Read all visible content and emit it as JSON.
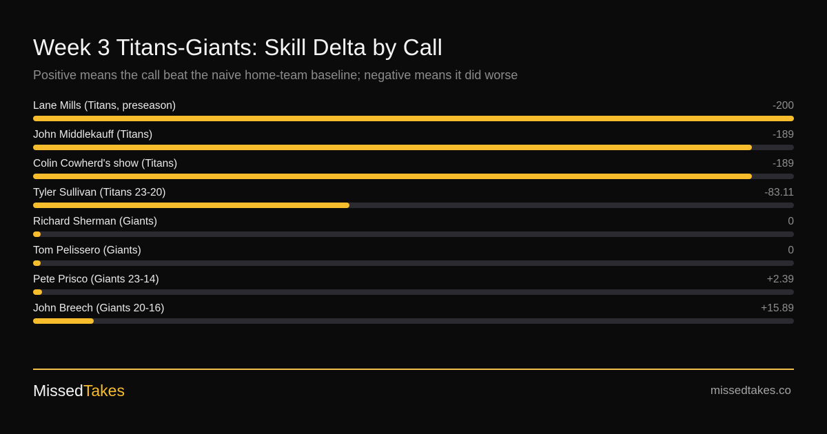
{
  "header": {
    "title": "Week 3 Titans-Giants: Skill Delta by Call",
    "subtitle": "Positive means the call beat the naive home-team baseline; negative means it did worse"
  },
  "chart_data": {
    "type": "bar",
    "orientation": "horizontal",
    "categories": [
      "Lane Mills (Titans, preseason)",
      "John Middlekauff (Titans)",
      "Colin Cowherd's show (Titans)",
      "Tyler Sullivan (Titans 23-20)",
      "Richard Sherman (Giants)",
      "Tom Pelissero (Giants)",
      "Pete Prisco (Giants 23-14)",
      "John Breech (Giants 20-16)"
    ],
    "values": [
      -200,
      -189,
      -189,
      -83.11,
      0,
      0,
      2.39,
      15.89
    ],
    "value_labels": [
      "-200",
      "-189",
      "-189",
      "-83.11",
      "0",
      "0",
      "+2.39",
      "+15.89"
    ],
    "bar_scale": "absolute value",
    "xlim": [
      0,
      200
    ],
    "grid": false,
    "legend": "none",
    "colors": {
      "bar": "#f7bd2c",
      "track": "#2b2a31",
      "background": "#0b0b0b"
    }
  },
  "footer": {
    "brand_part1": "Missed",
    "brand_part2": "Takes",
    "site": "missedtakes.co",
    "divider_color": "#f1c04a"
  }
}
